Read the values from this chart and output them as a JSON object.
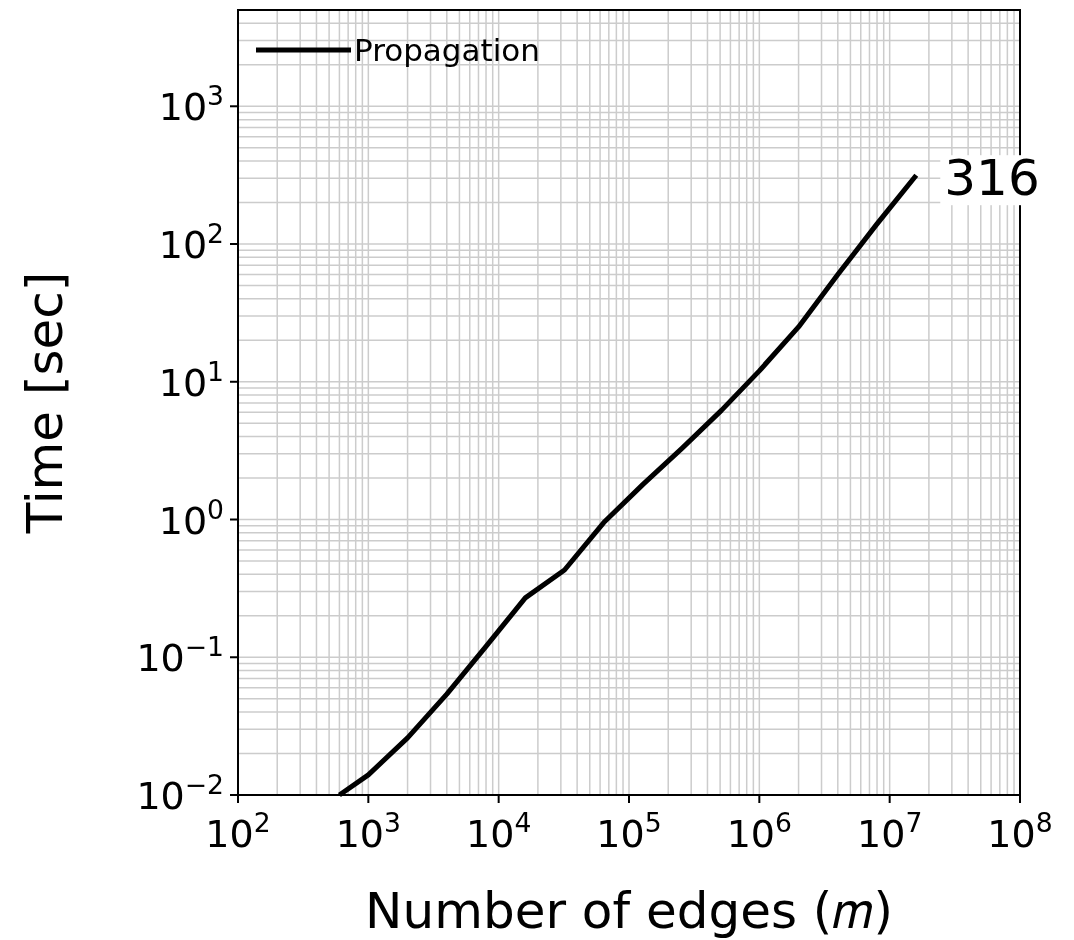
{
  "chart_data": {
    "type": "line",
    "xlabel": "Number of edges (𝑚)",
    "ylabel": "Time [sec]",
    "log": "xy",
    "grid": true,
    "legend": "top left",
    "annotations": [
      "316"
    ],
    "xlim": [
      100,
      100000000
    ],
    "ylim": [
      0.01,
      5000
    ],
    "xticks": [
      {
        "value": 100,
        "label": "10$^{2}$"
      },
      {
        "value": 1000,
        "label": "10$^{3}$"
      },
      {
        "value": 10000,
        "label": "10$^{4}$"
      },
      {
        "value": 100000,
        "label": "10$^{5}$"
      },
      {
        "value": 1000000,
        "label": "10$^{6}$"
      },
      {
        "value": 10000000,
        "label": "10$^{7}$"
      },
      {
        "value": 100000000,
        "label": "10$^{8}$"
      }
    ],
    "yticks": [
      {
        "value": 0.01,
        "label": "10$^{−2}$"
      },
      {
        "value": 0.1,
        "label": "10$^{−1}$"
      },
      {
        "value": 1,
        "label": "10$^{0}$"
      },
      {
        "value": 10,
        "label": "10$^{1}$"
      },
      {
        "value": 100,
        "label": "10$^{2}$"
      },
      {
        "value": 1000,
        "label": "10$^{3}$"
      }
    ],
    "series": [
      {
        "name": "Propagation",
        "color": "#000000",
        "x": [
          600,
          1000,
          2000,
          4000,
          8000,
          16000,
          32000,
          64000,
          128000,
          256000,
          512000,
          1000000,
          2000000,
          4000000,
          8000000,
          16000000
        ],
        "values": [
          0.01,
          0.014,
          0.026,
          0.054,
          0.12,
          0.27,
          0.43,
          0.95,
          1.8,
          3.3,
          6.2,
          12,
          25,
          60,
          140,
          316
        ]
      }
    ]
  }
}
